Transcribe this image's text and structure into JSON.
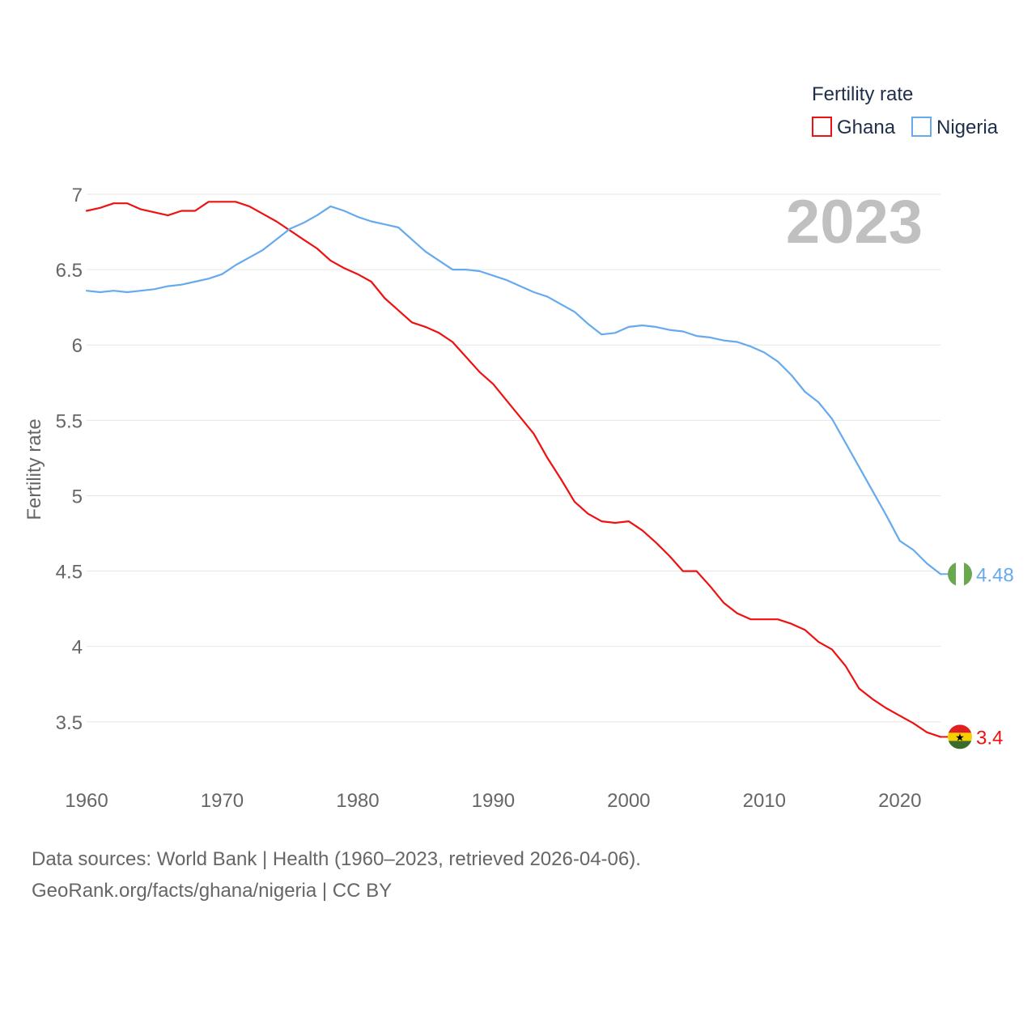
{
  "chart_data": {
    "type": "line",
    "title": "Fertility rate",
    "ylabel": "Fertility rate",
    "xlabel": "",
    "year_label": "2023",
    "xlim": [
      1960,
      2023
    ],
    "ylim": [
      3.3,
      7.0
    ],
    "x_ticks": [
      1960,
      1970,
      1980,
      1990,
      2000,
      2010,
      2020
    ],
    "y_ticks": [
      3.5,
      4,
      4.5,
      5,
      5.5,
      6,
      6.5,
      7
    ],
    "y_tick_labels": [
      "3.5",
      "4",
      "4.5",
      "5",
      "5.5",
      "6",
      "6.5",
      "7"
    ],
    "x_tick_labels": [
      "1960",
      "1970",
      "1980",
      "1990",
      "2000",
      "2010",
      "2020"
    ],
    "x_start": 1960,
    "series": [
      {
        "name": "Ghana",
        "color": "#ee1111",
        "end_label": "3.4",
        "flag": "ghana",
        "values": [
          6.89,
          6.91,
          6.94,
          6.94,
          6.9,
          6.88,
          6.86,
          6.89,
          6.89,
          6.95,
          6.95,
          6.95,
          6.92,
          6.87,
          6.82,
          6.76,
          6.7,
          6.64,
          6.56,
          6.51,
          6.47,
          6.42,
          6.31,
          6.23,
          6.15,
          6.12,
          6.08,
          6.02,
          5.92,
          5.82,
          5.74,
          5.63,
          5.52,
          5.41,
          5.25,
          5.11,
          4.96,
          4.88,
          4.83,
          4.82,
          4.83,
          4.77,
          4.69,
          4.6,
          4.5,
          4.5,
          4.4,
          4.29,
          4.22,
          4.18,
          4.18,
          4.18,
          4.15,
          4.11,
          4.03,
          3.98,
          3.87,
          3.72,
          3.65,
          3.59,
          3.54,
          3.49,
          3.43,
          3.4
        ]
      },
      {
        "name": "Nigeria",
        "color": "#66aaee",
        "end_label": "4.48",
        "flag": "nigeria",
        "values": [
          6.36,
          6.35,
          6.36,
          6.35,
          6.36,
          6.37,
          6.39,
          6.4,
          6.42,
          6.44,
          6.47,
          6.53,
          6.58,
          6.63,
          6.7,
          6.77,
          6.81,
          6.86,
          6.92,
          6.89,
          6.85,
          6.82,
          6.8,
          6.78,
          6.7,
          6.62,
          6.56,
          6.5,
          6.5,
          6.49,
          6.46,
          6.43,
          6.39,
          6.35,
          6.32,
          6.27,
          6.22,
          6.14,
          6.07,
          6.08,
          6.12,
          6.13,
          6.12,
          6.1,
          6.09,
          6.06,
          6.05,
          6.03,
          6.02,
          5.99,
          5.95,
          5.89,
          5.8,
          5.69,
          5.62,
          5.51,
          5.35,
          5.19,
          5.03,
          4.87,
          4.7,
          4.64,
          4.55,
          4.48
        ]
      }
    ]
  },
  "footer": {
    "line1": "Data sources: World Bank | Health (1960–2023, retrieved 2026-04-06).",
    "line2": "GeoRank.org/facts/ghana/nigeria | CC BY"
  }
}
